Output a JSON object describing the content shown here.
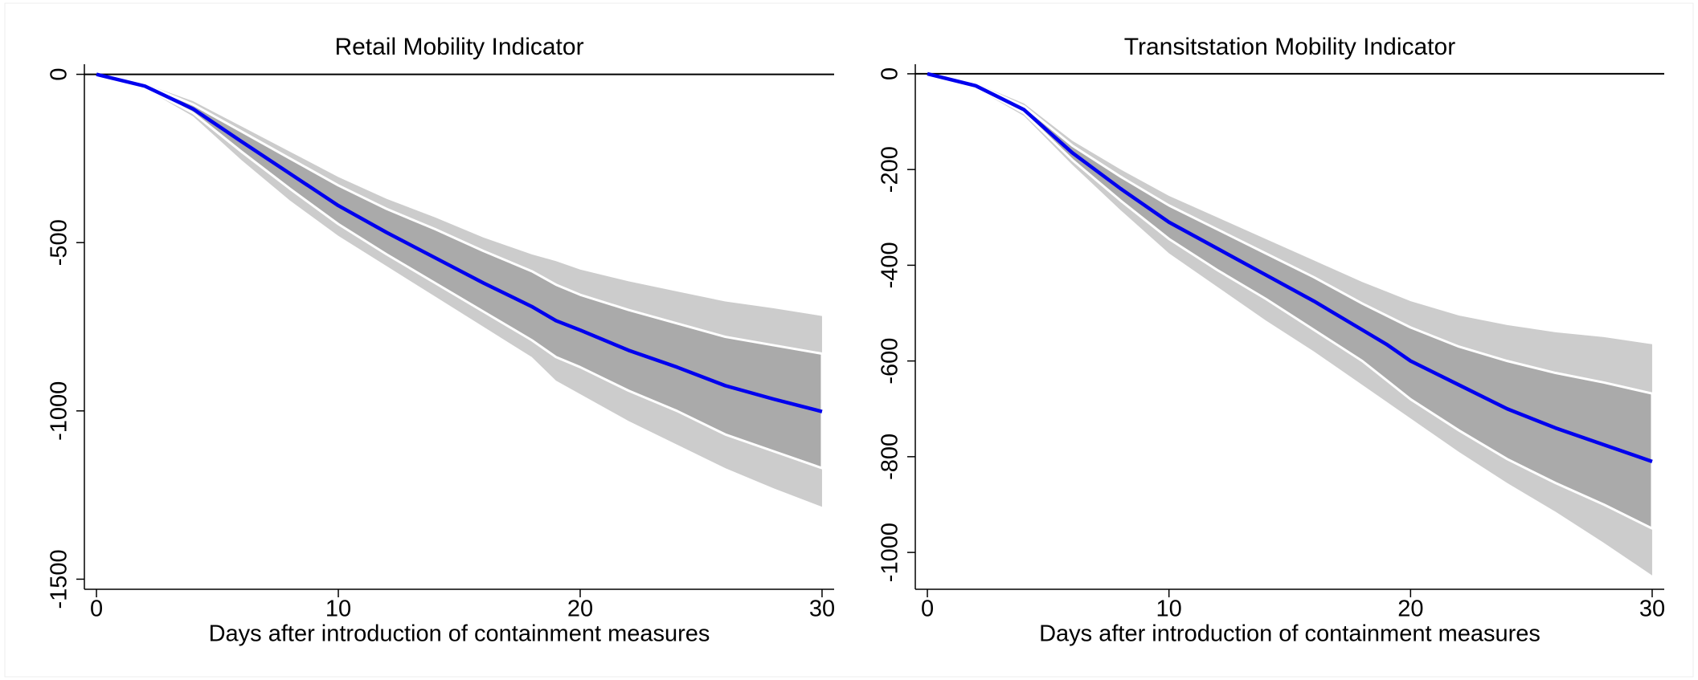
{
  "chart_data": [
    {
      "type": "line",
      "title": "Retail Mobility Indicator",
      "x_label": "Days after introduction of containment measures",
      "x": [
        0,
        2,
        4,
        6,
        8,
        10,
        12,
        14,
        16,
        18,
        19,
        20,
        22,
        24,
        26,
        28,
        30
      ],
      "series": [
        {
          "color": "#0000ee",
          "values": [
            0,
            -35,
            -103,
            -200,
            -295,
            -390,
            -470,
            -545,
            -620,
            -690,
            -732,
            -760,
            -820,
            -870,
            -925,
            -965,
            -1002
          ]
        }
      ],
      "bands": [
        {
          "color": "#cccccc",
          "upper": [
            0,
            -28,
            -80,
            -155,
            -230,
            -305,
            -370,
            -425,
            -485,
            -535,
            -555,
            -580,
            -615,
            -645,
            -675,
            -695,
            -718
          ],
          "lower": [
            0,
            -42,
            -125,
            -255,
            -375,
            -480,
            -570,
            -660,
            -750,
            -840,
            -910,
            -950,
            -1030,
            -1100,
            -1170,
            -1230,
            -1285
          ]
        },
        {
          "color": "#aaaaaa",
          "upper": [
            0,
            -30,
            -90,
            -170,
            -250,
            -330,
            -400,
            -460,
            -525,
            -585,
            -625,
            -655,
            -700,
            -740,
            -780,
            -805,
            -830
          ],
          "lower": [
            0,
            -40,
            -115,
            -230,
            -340,
            -445,
            -535,
            -620,
            -705,
            -790,
            -840,
            -870,
            -940,
            -1000,
            -1070,
            -1120,
            -1170
          ]
        }
      ],
      "hline": 0,
      "xlim": [
        -0.5,
        30.5
      ],
      "xticks": [
        0,
        10,
        20,
        30
      ],
      "ylim": [
        -1530,
        30
      ],
      "yticks": [
        0,
        -500,
        -1000,
        -1500
      ]
    },
    {
      "type": "line",
      "title": "Transitstation Mobility Indicator",
      "x_label": "Days after introduction of containment measures",
      "x": [
        0,
        2,
        4,
        6,
        8,
        10,
        12,
        14,
        16,
        18,
        19,
        20,
        22,
        24,
        26,
        28,
        30
      ],
      "series": [
        {
          "color": "#0000ee",
          "values": [
            0,
            -25,
            -75,
            -165,
            -240,
            -310,
            -365,
            -420,
            -475,
            -535,
            -565,
            -600,
            -650,
            -700,
            -740,
            -775,
            -810
          ]
        }
      ],
      "bands": [
        {
          "color": "#cccccc",
          "upper": [
            0,
            -20,
            -62,
            -140,
            -200,
            -255,
            -300,
            -345,
            -390,
            -435,
            -455,
            -475,
            -505,
            -525,
            -540,
            -550,
            -565
          ],
          "lower": [
            0,
            -30,
            -88,
            -190,
            -285,
            -375,
            -445,
            -515,
            -580,
            -650,
            -685,
            -720,
            -790,
            -855,
            -915,
            -980,
            -1048
          ]
        },
        {
          "color": "#aaaaaa",
          "upper": [
            0,
            -22,
            -68,
            -150,
            -215,
            -275,
            -325,
            -375,
            -425,
            -480,
            -505,
            -530,
            -570,
            -600,
            -625,
            -645,
            -668
          ],
          "lower": [
            0,
            -28,
            -82,
            -180,
            -265,
            -345,
            -410,
            -470,
            -535,
            -600,
            -640,
            -680,
            -745,
            -805,
            -855,
            -900,
            -950
          ]
        }
      ],
      "hline": 0,
      "xlim": [
        -0.5,
        30.5
      ],
      "xticks": [
        0,
        10,
        20,
        30
      ],
      "ylim": [
        -1077,
        20
      ],
      "yticks": [
        0,
        -200,
        -400,
        -600,
        -800,
        -1000
      ]
    }
  ]
}
